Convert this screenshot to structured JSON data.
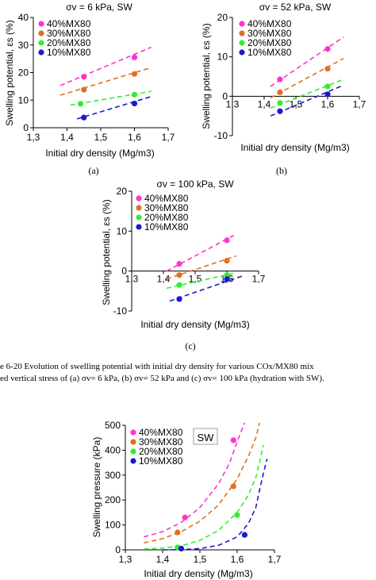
{
  "panel_labels": [
    "(a)",
    "(b)",
    "(c)"
  ],
  "caption": {
    "line1": "e 6-20 Evolution of swelling potential with initial dry density for various COx/MX80 mix",
    "line2": "ed vertical stress of (a) σv= 6 kPa, (b) σv= 52 kPa and (c) σv= 100 kPa (hydration with SW)."
  },
  "colors": {
    "40%MX80": "#ff33cc",
    "30%MX80": "#e07020",
    "20%MX80": "#33ee33",
    "10%MX80": "#1a1acc"
  },
  "chart_data": [
    {
      "type": "scatter",
      "title": "σv = 6 kPa, SW",
      "xlabel": "Initial dry density (Mg/m3)",
      "ylabel": "Swelling potential, εs (%)",
      "xlim": [
        1.3,
        1.7
      ],
      "ylim": [
        0,
        40
      ],
      "xticks": [
        "1,3",
        "1,4",
        "1,5",
        "1,6",
        "1,7"
      ],
      "yticks": [
        "0",
        "10",
        "20",
        "30",
        "40"
      ],
      "legend": "top-left",
      "series": [
        {
          "name": "40%MX80",
          "points": [
            [
              1.45,
              18.5
            ],
            [
              1.6,
              25.5
            ]
          ],
          "trend": [
            [
              1.38,
              15.3
            ],
            [
              1.65,
              29.2
            ]
          ]
        },
        {
          "name": "30%MX80",
          "points": [
            [
              1.45,
              13.8
            ],
            [
              1.6,
              19.5
            ]
          ],
          "trend": [
            [
              1.38,
              11.8
            ],
            [
              1.65,
              21.8
            ]
          ]
        },
        {
          "name": "20%MX80",
          "points": [
            [
              1.44,
              8.7
            ],
            [
              1.6,
              12.0
            ]
          ],
          "trend": [
            [
              1.41,
              8.2
            ],
            [
              1.65,
              13.2
            ]
          ]
        },
        {
          "name": "10%MX80",
          "points": [
            [
              1.45,
              3.7
            ],
            [
              1.6,
              8.8
            ]
          ],
          "trend": [
            [
              1.43,
              3.2
            ],
            [
              1.65,
              11.3
            ]
          ]
        }
      ]
    },
    {
      "type": "scatter",
      "title": "σv = 52 kPa, SW",
      "xlabel": "Initial dry density (Mg/m3)",
      "ylabel": "Swelling potential, εs (%)",
      "xlim": [
        1.3,
        1.7
      ],
      "ylim": [
        -10,
        20
      ],
      "xticks": [
        "1,3",
        "1,4",
        "1,5",
        "1,6",
        "1,7"
      ],
      "yticks": [
        "-10",
        "0",
        "10",
        "20"
      ],
      "legend": "top-left",
      "series": [
        {
          "name": "40%MX80",
          "points": [
            [
              1.45,
              4.3
            ],
            [
              1.6,
              12.0
            ]
          ],
          "trend": [
            [
              1.42,
              2.5
            ],
            [
              1.65,
              15.0
            ]
          ]
        },
        {
          "name": "30%MX80",
          "points": [
            [
              1.45,
              1.0
            ],
            [
              1.6,
              7.0
            ]
          ],
          "trend": [
            [
              1.42,
              -0.4
            ],
            [
              1.65,
              9.6
            ]
          ]
        },
        {
          "name": "20%MX80",
          "points": [
            [
              1.45,
              -1.7
            ],
            [
              1.6,
              2.5
            ]
          ],
          "trend": [
            [
              1.42,
              -3.0
            ],
            [
              1.65,
              4.3
            ]
          ]
        },
        {
          "name": "10%MX80",
          "points": [
            [
              1.45,
              -3.8
            ],
            [
              1.6,
              0.5
            ]
          ],
          "trend": [
            [
              1.42,
              -5.0
            ],
            [
              1.65,
              2.8
            ]
          ]
        }
      ]
    },
    {
      "type": "scatter",
      "title": "σv = 100 kPa, SW",
      "xlabel": "Initial dry density (Mg/m3)",
      "ylabel": "Swelling potential, εs (%)",
      "xlim": [
        1.3,
        1.7
      ],
      "ylim": [
        -10,
        20
      ],
      "xticks": [
        "1,3",
        "1,4",
        "1,5",
        "1,6",
        "1,7"
      ],
      "yticks": [
        "-10",
        "0",
        "10",
        "20"
      ],
      "legend": "top-left",
      "series": [
        {
          "name": "40%MX80",
          "points": [
            [
              1.45,
              1.8
            ],
            [
              1.6,
              7.7
            ]
          ],
          "trend": [
            [
              1.41,
              0.0
            ],
            [
              1.63,
              9.3
            ]
          ]
        },
        {
          "name": "30%MX80",
          "points": [
            [
              1.45,
              -1.0
            ],
            [
              1.6,
              2.6
            ]
          ],
          "trend": [
            [
              1.41,
              -2.0
            ],
            [
              1.63,
              3.8
            ]
          ]
        },
        {
          "name": "20%MX80",
          "points": [
            [
              1.45,
              -3.5
            ],
            [
              1.6,
              -1.0
            ]
          ],
          "trend": [
            [
              1.41,
              -4.3
            ],
            [
              1.63,
              -0.4
            ]
          ]
        },
        {
          "name": "10%MX80",
          "points": [
            [
              1.45,
              -7.0
            ],
            [
              1.6,
              -2.0
            ]
          ],
          "trend": [
            [
              1.42,
              -7.5
            ],
            [
              1.65,
              -1.2
            ]
          ]
        }
      ]
    },
    {
      "type": "scatter",
      "title": "",
      "annotation": "SW",
      "xlabel": "Initial dry density (Mg/m3)",
      "ylabel": "Swelling pressure (kPa)",
      "xlim": [
        1.3,
        1.7
      ],
      "ylim": [
        0,
        500
      ],
      "xticks": [
        "1,3",
        "1,4",
        "1,5",
        "1,6",
        "1,7"
      ],
      "yticks": [
        "0",
        "100",
        "200",
        "300",
        "400",
        "500"
      ],
      "legend": "top-left",
      "series": [
        {
          "name": "40%MX80",
          "points": [
            [
              1.46,
              130
            ],
            [
              1.59,
              440
            ]
          ],
          "trend": [
            [
              1.35,
              52
            ],
            [
              1.4,
              73
            ],
            [
              1.45,
              110
            ],
            [
              1.5,
              170
            ],
            [
              1.55,
              265
            ],
            [
              1.58,
              350
            ],
            [
              1.6,
              435
            ],
            [
              1.62,
              510
            ]
          ]
        },
        {
          "name": "30%MX80",
          "points": [
            [
              1.44,
              70
            ],
            [
              1.59,
              255
            ]
          ],
          "trend": [
            [
              1.35,
              28
            ],
            [
              1.4,
              45
            ],
            [
              1.45,
              73
            ],
            [
              1.5,
              115
            ],
            [
              1.55,
              180
            ],
            [
              1.6,
              285
            ],
            [
              1.63,
              375
            ],
            [
              1.65,
              450
            ],
            [
              1.66,
              510
            ]
          ]
        },
        {
          "name": "20%MX80",
          "points": [
            [
              1.44,
              10
            ],
            [
              1.6,
              140
            ]
          ],
          "trend": [
            [
              1.35,
              3
            ],
            [
              1.4,
              7
            ],
            [
              1.45,
              16
            ],
            [
              1.5,
              38
            ],
            [
              1.55,
              78
            ],
            [
              1.6,
              150
            ],
            [
              1.63,
              220
            ],
            [
              1.65,
              290
            ],
            [
              1.66,
              350
            ],
            [
              1.67,
              420
            ]
          ]
        },
        {
          "name": "10%MX80",
          "points": [
            [
              1.45,
              5
            ],
            [
              1.62,
              60
            ]
          ],
          "trend": [
            [
              1.4,
              0
            ],
            [
              1.45,
              1
            ],
            [
              1.5,
              5
            ],
            [
              1.55,
              18
            ],
            [
              1.6,
              52
            ],
            [
              1.63,
              105
            ],
            [
              1.65,
              170
            ],
            [
              1.66,
              240
            ],
            [
              1.67,
              305
            ],
            [
              1.68,
              365
            ]
          ]
        }
      ]
    }
  ]
}
